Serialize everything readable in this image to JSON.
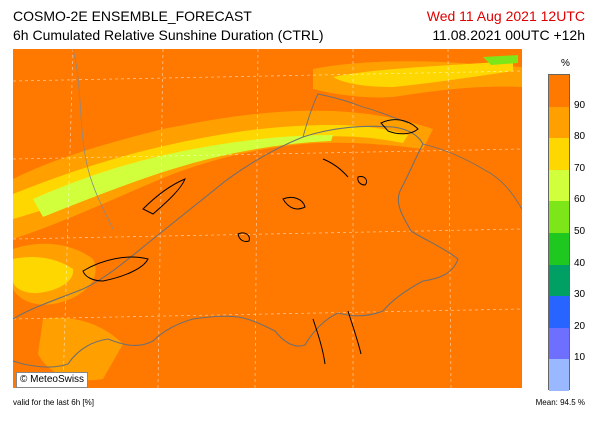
{
  "header": {
    "title": "COSMO-2E ENSEMBLE_FORECAST",
    "subtitle": "6h Cumulated Relative Sunshine Duration (CTRL)",
    "valid_date": "Wed 11 Aug 2021 12UTC",
    "run_info": "11.08.2021 00UTC +12h"
  },
  "logo": {
    "text": "© MeteoSwiss"
  },
  "legend": {
    "unit": "%",
    "levels": [
      "10",
      "20",
      "30",
      "40",
      "50",
      "60",
      "70",
      "80",
      "90"
    ],
    "colors": [
      "#99b8ff",
      "#6e6eff",
      "#2864ff",
      "#00a064",
      "#1ec81e",
      "#7de619",
      "#d2ff3c",
      "#ffd700",
      "#ffa000",
      "#ff7800"
    ]
  },
  "footer": {
    "validity": "valid for the last 6h [%]",
    "mean": "Mean:  94.5 %"
  },
  "colors": {
    "date_text": "#e00000",
    "dominant_field": "#ff7800"
  }
}
